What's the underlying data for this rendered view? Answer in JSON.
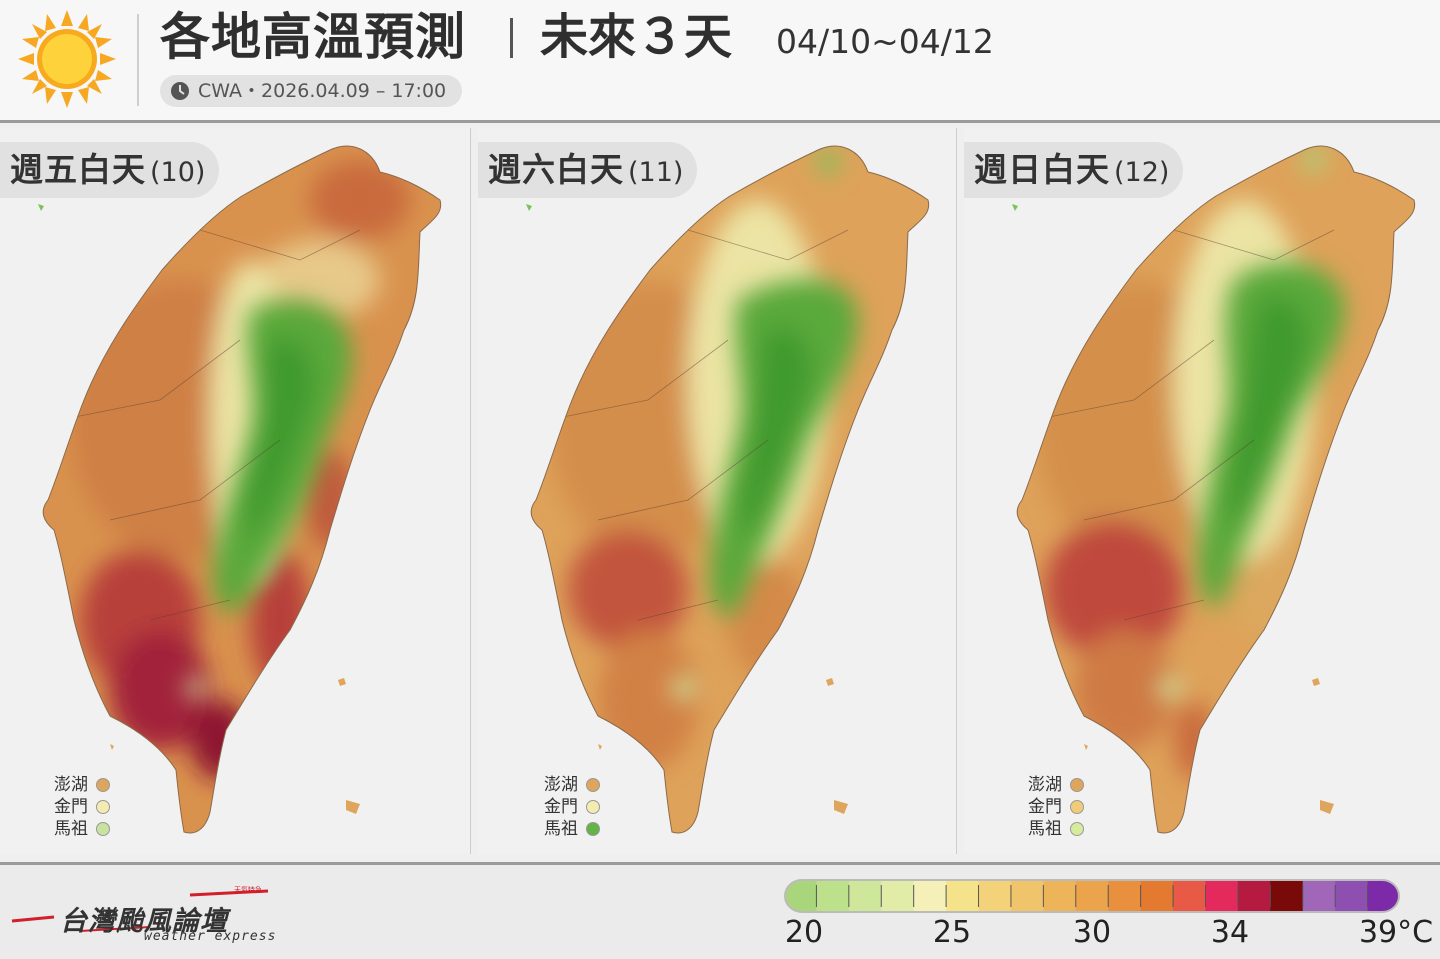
{
  "header": {
    "title": "各地高溫預測",
    "subtitle": "未來３天",
    "date_range": "04/10~04/12",
    "source": "CWA・2026.04.09 – 17:00",
    "icons": [
      "sun-icon",
      "clock-icon"
    ]
  },
  "panels": [
    {
      "day": "週五白天",
      "date": "(10)",
      "islands": [
        {
          "name": "澎湖",
          "color": "#dea55c"
        },
        {
          "name": "金門",
          "color": "#f3ecb0"
        },
        {
          "name": "馬祖",
          "color": "#c8e3a0"
        }
      ]
    },
    {
      "day": "週六白天",
      "date": "(11)",
      "islands": [
        {
          "name": "澎湖",
          "color": "#dea55c"
        },
        {
          "name": "金門",
          "color": "#f3ecb0"
        },
        {
          "name": "馬祖",
          "color": "#63b347"
        }
      ]
    },
    {
      "day": "週日白天",
      "date": "(12)",
      "islands": [
        {
          "name": "澎湖",
          "color": "#dea55c"
        },
        {
          "name": "金門",
          "color": "#f0cc78"
        },
        {
          "name": "馬祖",
          "color": "#d6ec9c"
        }
      ]
    }
  ],
  "footer": {
    "brand": "台灣颱風論壇",
    "brand_sub": "weather express",
    "brand_tag": "天氣特急"
  },
  "legend": {
    "unit": "°C",
    "tick_labels": [
      "20",
      "25",
      "30",
      "34",
      "39°C"
    ],
    "colors": [
      "#a9d67a",
      "#bde08a",
      "#cfe79a",
      "#e1eda6",
      "#f4f0b8",
      "#f5e38c",
      "#f3d27a",
      "#f0c46a",
      "#eeb45a",
      "#eba44c",
      "#e8903e",
      "#e37a2f",
      "#e85a45",
      "#e42a5c",
      "#b51a40",
      "#7a0a0a",
      "#a067b8",
      "#8d4fb0",
      "#7d2aa8"
    ]
  }
}
